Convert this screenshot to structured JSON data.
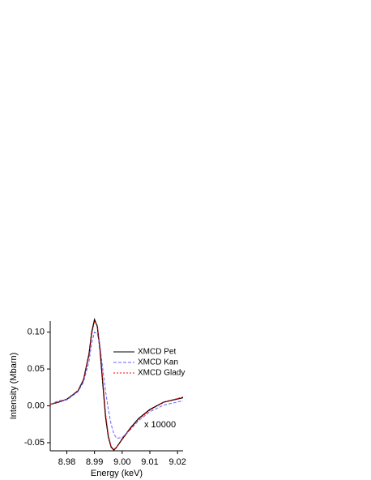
{
  "chart_data": {
    "type": "line",
    "x_label": "Energy (keV)",
    "y_label": "Intensity (Mbarn)",
    "annotation": "x 10000",
    "x": [
      8.974,
      8.977,
      8.98,
      8.984,
      8.986,
      8.988,
      8.989,
      8.99,
      8.991,
      8.992,
      8.993,
      8.994,
      8.995,
      8.996,
      8.997,
      8.998,
      9.0,
      9.003,
      9.006,
      9.01,
      9.015,
      9.022
    ],
    "series": [
      {
        "name": "XMCD Pet",
        "color": "#000000",
        "style": "solid",
        "values": [
          0.002,
          0.005,
          0.009,
          0.02,
          0.035,
          0.07,
          0.1,
          0.117,
          0.108,
          0.075,
          0.03,
          -0.015,
          -0.042,
          -0.056,
          -0.06,
          -0.056,
          -0.045,
          -0.03,
          -0.017,
          -0.005,
          0.005,
          0.011
        ]
      },
      {
        "name": "XMCD Kan",
        "color": "#6666ff",
        "style": "dashed",
        "values": [
          0.002,
          0.007,
          0.008,
          0.019,
          0.032,
          0.06,
          0.085,
          0.1,
          0.098,
          0.08,
          0.05,
          0.02,
          -0.005,
          -0.025,
          -0.038,
          -0.044,
          -0.043,
          -0.032,
          -0.02,
          -0.008,
          0.001,
          0.007
        ]
      },
      {
        "name": "XMCD Glady",
        "color": "#ff0000",
        "style": "dotted",
        "values": [
          0.002,
          0.005,
          0.009,
          0.021,
          0.036,
          0.068,
          0.097,
          0.114,
          0.11,
          0.08,
          0.035,
          -0.01,
          -0.04,
          -0.055,
          -0.059,
          -0.056,
          -0.046,
          -0.031,
          -0.018,
          -0.006,
          0.005,
          0.012
        ]
      }
    ],
    "xlim": [
      8.974,
      9.022
    ],
    "ylim": [
      -0.061,
      0.115
    ],
    "xticks": [
      8.98,
      8.99,
      {
        "value": 9,
        "label": "9.00"
      },
      9.01,
      9.02
    ],
    "yticks": [
      -0.05,
      {
        "value": 0,
        "label": "0.00"
      },
      0.05,
      {
        "value": 0.1,
        "label": "0.10"
      }
    ],
    "legend": "upper right"
  }
}
